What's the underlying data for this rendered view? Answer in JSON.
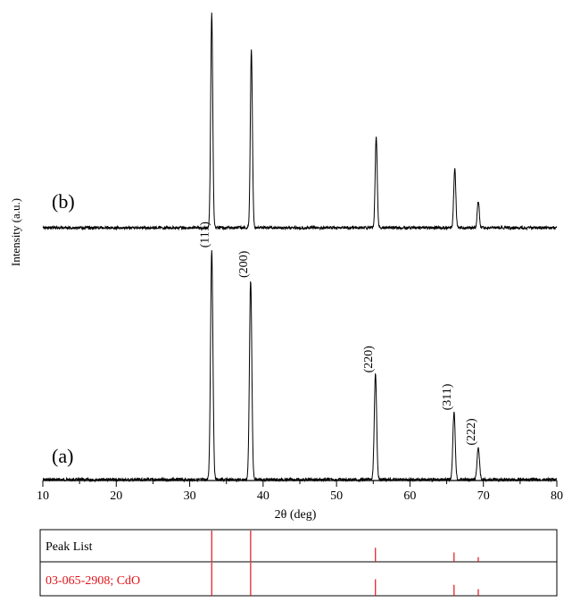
{
  "chart_data": {
    "type": "line",
    "xlabel": "2θ (deg)",
    "ylabel": "Intensity (a.u.)",
    "xlim": [
      10,
      80
    ],
    "x_ticks": [
      "10",
      "20",
      "30",
      "40",
      "50",
      "60",
      "70",
      "80"
    ],
    "grid": false,
    "series": [
      {
        "name": "(a)",
        "peaks": [
          {
            "x": 33.0,
            "height": 0.92,
            "label": "(111)"
          },
          {
            "x": 38.3,
            "height": 0.8,
            "label": "(200)"
          },
          {
            "x": 55.3,
            "height": 0.42,
            "label": "(220)"
          },
          {
            "x": 66.0,
            "height": 0.27,
            "label": "(311)"
          },
          {
            "x": 69.3,
            "height": 0.13,
            "label": "(222)"
          }
        ]
      },
      {
        "name": "(b)",
        "peaks": [
          {
            "x": 33.0,
            "height": 0.96
          },
          {
            "x": 38.4,
            "height": 0.8
          },
          {
            "x": 55.4,
            "height": 0.41
          },
          {
            "x": 66.1,
            "height": 0.27
          },
          {
            "x": 69.3,
            "height": 0.12
          }
        ]
      }
    ],
    "peak_list_panel": {
      "row1_label": "Peak List",
      "row2_label": "03-065-2908; CdO",
      "lines_row1": [
        {
          "x": 33.0,
          "rel": 1.0
        },
        {
          "x": 38.3,
          "rel": 1.0
        },
        {
          "x": 55.3,
          "rel": 0.45
        },
        {
          "x": 66.0,
          "rel": 0.3
        },
        {
          "x": 69.3,
          "rel": 0.15
        }
      ],
      "lines_row2": [
        {
          "x": 33.0,
          "rel": 1.0
        },
        {
          "x": 38.3,
          "rel": 1.0
        },
        {
          "x": 55.3,
          "rel": 0.5
        },
        {
          "x": 66.0,
          "rel": 0.33
        },
        {
          "x": 69.3,
          "rel": 0.2
        }
      ],
      "line_color": "#e0141b"
    },
    "colors": {
      "trace": "#000000",
      "reference": "#e0141b"
    }
  }
}
